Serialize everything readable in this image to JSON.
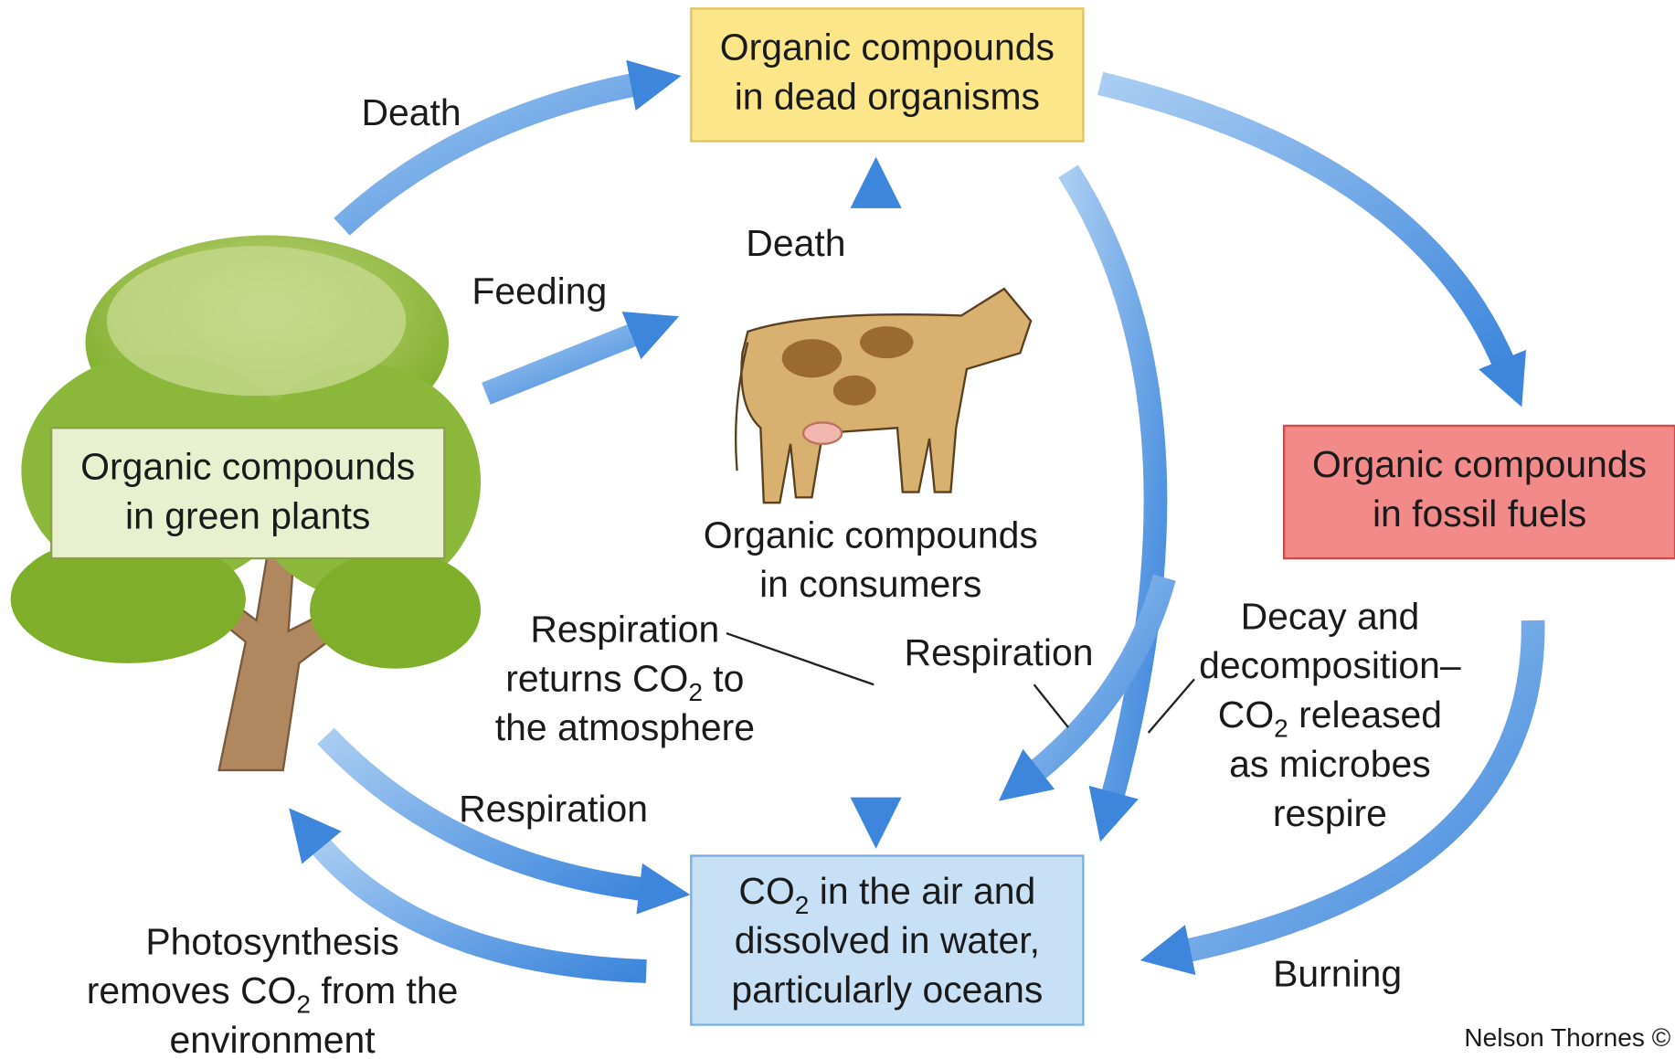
{
  "nodes": [
    {
      "lines": [
        "Organic compounds",
        "in dead organisms"
      ]
    },
    {
      "lines": [
        "Organic compounds",
        "in green plants"
      ]
    },
    {
      "lines": [
        "Organic compounds",
        "in consumers"
      ]
    },
    {
      "lines": [
        "Organic compounds",
        "in fossil fuels"
      ]
    },
    {
      "lines": [
        [
          "CO",
          "2",
          " in the air and"
        ],
        "dissolved in water,",
        "particularly oceans"
      ]
    }
  ],
  "edge_labels": [
    {
      "lines": [
        "Death"
      ]
    },
    {
      "lines": [
        "Feeding"
      ]
    },
    {
      "lines": [
        "Death"
      ]
    },
    {
      "lines": [
        "Respiration",
        [
          "returns CO",
          "2",
          " to"
        ],
        "the atmosphere"
      ]
    },
    {
      "lines": [
        "Respiration"
      ]
    },
    {
      "lines": [
        "Decay and",
        "decomposition–",
        [
          "CO",
          "2",
          " released"
        ],
        "as microbes",
        "respire"
      ]
    },
    {
      "lines": [
        "Respiration"
      ]
    },
    {
      "lines": [
        "Photosynthesis",
        [
          "removes CO",
          "2",
          " from the"
        ],
        "environment"
      ]
    },
    {
      "lines": [
        "Burning"
      ]
    }
  ],
  "credit": "Nelson Thornes ©"
}
